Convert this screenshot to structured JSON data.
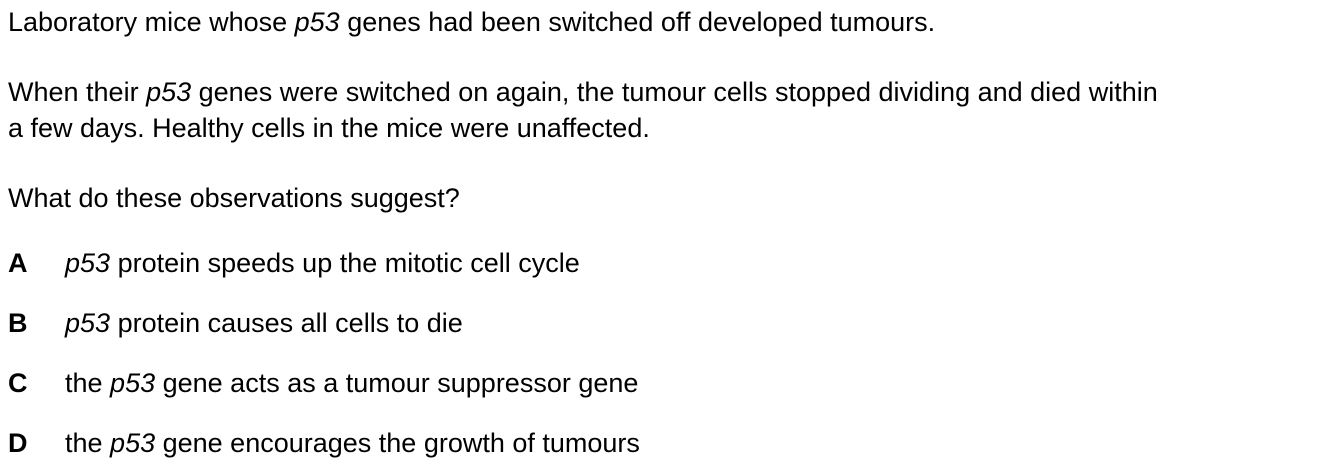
{
  "intro": {
    "line1": {
      "before": "Laboratory mice whose ",
      "gene": "p53",
      "after": " genes had been switched off developed tumours."
    },
    "line2": {
      "before": "When their ",
      "gene": "p53",
      "after_line_a": " genes were switched on again, the tumour cells stopped dividing and died within",
      "after_line_b": "a few days. Healthy cells in the mice were unaffected."
    }
  },
  "question": "What do these observations suggest?",
  "options": [
    {
      "letter": "A",
      "before": "",
      "gene": "p53",
      "after": " protein speeds up the mitotic cell cycle"
    },
    {
      "letter": "B",
      "before": "",
      "gene": "p53",
      "after": " protein causes all cells to die"
    },
    {
      "letter": "C",
      "before": "the ",
      "gene": "p53",
      "after": " gene acts as a tumour suppressor gene"
    },
    {
      "letter": "D",
      "before": "the ",
      "gene": "p53",
      "after": " gene encourages the growth of tumours"
    }
  ]
}
